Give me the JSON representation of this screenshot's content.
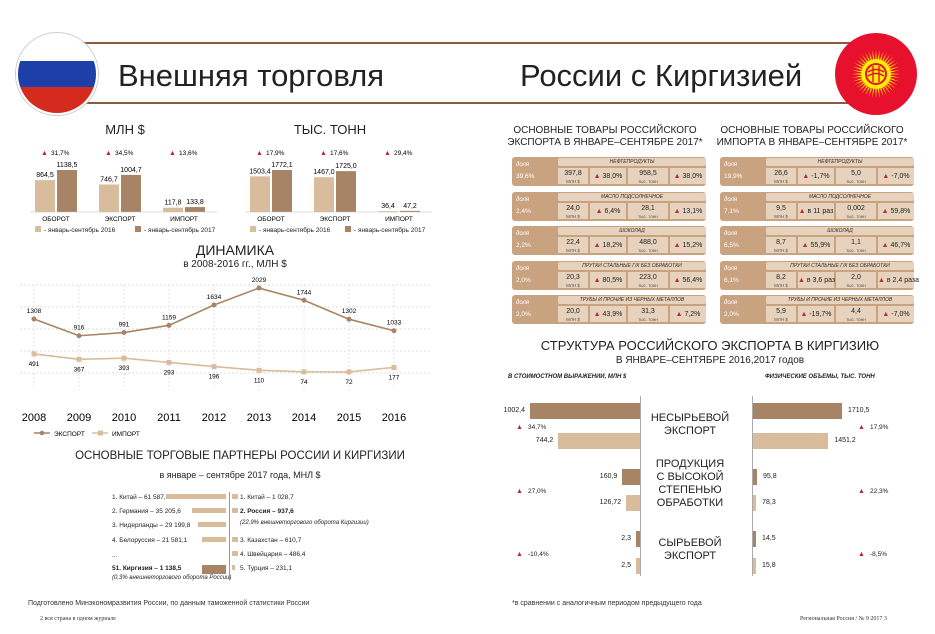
{
  "header": {
    "title_left": "Внешняя торговля",
    "title_right": "России с Киргизией"
  },
  "top_charts": {
    "legend": [
      "- январь-сентябрь 2016",
      "- январь-сентябрь 2017"
    ],
    "mln": {
      "title": "МЛН $",
      "categories": [
        "ОБОРОТ",
        "ЭКСПОРТ",
        "ИМПОРТ"
      ],
      "v2016": [
        864.5,
        746.7,
        117.8
      ],
      "v2017": [
        1138.5,
        1004.7,
        133.8
      ],
      "labels2016": [
        "864,5",
        "746,7",
        "117,8"
      ],
      "labels2017": [
        "1138,5",
        "1004,7",
        "133,8"
      ],
      "growth": [
        "31,7%",
        "34,5%",
        "13,6%"
      ]
    },
    "tonn": {
      "title": "ТЫС. ТОНН",
      "categories": [
        "ОБОРОТ",
        "ЭКСПОРТ",
        "ИМПОРТ"
      ],
      "v2016": [
        1503.4,
        1467.0,
        36.4
      ],
      "v2017": [
        1772.1,
        1725.0,
        47.2
      ],
      "labels2016": [
        "1503,4",
        "1467,0",
        "36,4"
      ],
      "labels2017": [
        "1772,1",
        "1725,0",
        "47,2"
      ],
      "growth": [
        "17,9%",
        "17,6%",
        "29,4%"
      ]
    }
  },
  "dynamics": {
    "title": "ДИНАМИКА",
    "subtitle": "в 2008-2016 гг., МЛН $",
    "years": [
      "2008",
      "2009",
      "2010",
      "2011",
      "2012",
      "2013",
      "2014",
      "2015",
      "2016"
    ],
    "export": [
      1308,
      916,
      991,
      1159,
      1634,
      2029,
      1744,
      1302,
      1033
    ],
    "import": [
      491,
      367,
      393,
      293,
      196,
      110,
      74,
      72,
      177
    ],
    "legend": [
      "ЭКСПОРТ",
      "ИМПОРТ"
    ]
  },
  "partners": {
    "title": "ОСНОВНЫЕ ТОРГОВЫЕ ПАРТНЕРЫ РОССИИ И КИРГИЗИИ",
    "subtitle": "в январе – сентябре 2017 года, МНЛ $",
    "left": [
      {
        "label": "1. Китай – 61 587,0",
        "v": 61587.0
      },
      {
        "label": "2. Германия – 35 205,6",
        "v": 35205.6
      },
      {
        "label": "3. Нидерланды – 29 199,8",
        "v": 29199.8
      },
      {
        "label": "4. Белоруссия – 21 581,1",
        "v": 21581.1
      },
      {
        "label": "...",
        "v": 0
      },
      {
        "label": "51. Киргизия – 1 138,5",
        "v": 1138.5,
        "bold": true
      }
    ],
    "left_note": "(0,3% внешнеторгового оборота России)",
    "right": [
      {
        "label": "1. Китай – 1 028,7",
        "v": 1028.7
      },
      {
        "label": "2. Россия – 937,6",
        "v": 937.6,
        "bold": true
      },
      {
        "label": "3. Казахстан – 610,7",
        "v": 610.7
      },
      {
        "label": "4. Швейцария – 486,4",
        "v": 486.4
      },
      {
        "label": "5. Турция – 231,1",
        "v": 231.1
      }
    ],
    "right_note": "(22,9% внешнеторгового оборота Киргизии)"
  },
  "goods": {
    "export_title": [
      "ОСНОВНЫЕ ТОВАРЫ РОССИЙСКОГО",
      "ЭКСПОРТА В ЯНВАРЕ–СЕНТЯБРЕ 2017*"
    ],
    "import_title": [
      "ОСНОВНЫЕ ТОВАРЫ РОССИЙСКОГО",
      "ИМПОРТА В ЯНВАРЕ–СЕНТЯБРЕ 2017*"
    ],
    "share_word": "доля",
    "unit_money": "МЛН $",
    "unit_mass": "тыс. тонн",
    "export": [
      {
        "name": "НЕФТЕПРОДУКТЫ",
        "share": "39,6%",
        "money": "397,8",
        "mg": "38,0%",
        "mass": "958,5",
        "tg": "38,0%"
      },
      {
        "name": "МАСЛО ПОДСОЛНЕЧНОЕ",
        "share": "2,4%",
        "money": "24,0",
        "mg": "6,4%",
        "mass": "28,1",
        "tg": "13,1%"
      },
      {
        "name": "ШОКОЛАД",
        "share": "2,2%",
        "money": "22,4",
        "mg": "18,2%",
        "mass": "488,0",
        "tg": "15,2%"
      },
      {
        "name": "ПРУТКИ СТАЛЬНЫЕ Г/К БЕЗ ОБРАБОТКИ",
        "share": "2,0%",
        "money": "20,3",
        "mg": "80,5%",
        "mass": "223,0",
        "tg": "56,4%"
      },
      {
        "name": "ТРУБЫ И ПРОЧИЕ ИЗ ЧЕРНЫХ МЕТАЛЛОВ",
        "share": "2,0%",
        "money": "20,0",
        "mg": "43,9%",
        "mass": "31,3",
        "tg": "7,2%"
      }
    ],
    "import": [
      {
        "name": "НЕФТЕПРОДУКТЫ",
        "share": "19,9%",
        "money": "26,6",
        "mg": "-1,7%",
        "mass": "5,0",
        "tg": "-7,0%"
      },
      {
        "name": "МАСЛО ПОДСОЛНЕЧНОЕ",
        "share": "7,1%",
        "money": "9,5",
        "mg": "в 11 раз",
        "mass": "0,002",
        "tg": "59,8%"
      },
      {
        "name": "ШОКОЛАД",
        "share": "6,5%",
        "money": "8,7",
        "mg": "55,9%",
        "mass": "1,1",
        "tg": "46,7%"
      },
      {
        "name": "ПРУТКИ СТАЛЬНЫЕ Г/К БЕЗ ОБРАБОТКИ",
        "share": "6,1%",
        "money": "8,2",
        "mg": "в 3,6 раз",
        "mass": "2,0",
        "tg": "в 2,4 раза"
      },
      {
        "name": "ТРУБЫ И ПРОЧИЕ ИЗ ЧЕРНЫХ МЕТАЛЛОВ",
        "share": "2,0%",
        "money": "5,9",
        "mg": "-19,7%",
        "mass": "4,4",
        "tg": "-7,0%"
      }
    ]
  },
  "structure": {
    "title": "СТРУКТУРА РОССИЙСКОГО ЭКСПОРТА В КИРГИЗИЮ",
    "subtitle": "В ЯНВАРЕ–СЕНТЯБРЕ 2016,2017 годов",
    "left_caption": "В СТОИМОСТНОМ ВЫРАЖЕНИИ, МЛН $",
    "right_caption": "ФИЗИЧЕСКИЕ ОБЪЕМЫ, ТЫС. ТОНН",
    "groups": [
      {
        "name": [
          "НЕСЫРЬЕВОЙ",
          "ЭКСПОРТ"
        ],
        "m2017": 1002.4,
        "m2016": 744.2,
        "ml17": "1002,4",
        "ml16": "744,2",
        "mg": "34,7%",
        "t2017": 1710.5,
        "t2016": 1451.2,
        "tl17": "1710,5",
        "tl16": "1451,2",
        "tg": "17,9%"
      },
      {
        "name": [
          "ПРОДУКЦИЯ",
          "С ВЫСОКОЙ",
          "СТЕПЕНЬЮ",
          "ОБРАБОТКИ"
        ],
        "m2017": 160.9,
        "m2016": 126.72,
        "ml17": "160,9",
        "ml16": "126,72",
        "mg": "27,0%",
        "t2017": 95.8,
        "t2016": 78.3,
        "tl17": "95,8",
        "tl16": "78,3",
        "tg": "22,3%"
      },
      {
        "name": [
          "СЫРЬЕВОЙ",
          "ЭКСПОРТ"
        ],
        "m2017": 2.3,
        "m2016": 2.5,
        "ml17": "2,3",
        "ml16": "2,5",
        "mg": "-10,4%",
        "t2017": 14.5,
        "t2016": 15.8,
        "tl17": "14,5",
        "tl16": "15,8",
        "tg": "-8,5%"
      }
    ]
  },
  "footer": {
    "source": "Подготовлено Минэкономразвития России, по данным таможенной статистики России",
    "note": "*в сравнении с аналогичным периодом предыдущего года",
    "page_left": "2    вся страна в одном журнале",
    "page_right": "Региональная Россия / № 9 2017    3"
  },
  "colors": {
    "dark": "#a88466",
    "light": "#d9bc9c",
    "accent": "#c0292a",
    "border": "#8a5b3e"
  },
  "chart_data": [
    {
      "type": "bar",
      "title": "МЛН $",
      "categories": [
        "ОБОРОТ",
        "ЭКСПОРТ",
        "ИМПОРТ"
      ],
      "series": [
        {
          "name": "- январь-сентябрь 2016",
          "values": [
            864.5,
            746.7,
            117.8
          ]
        },
        {
          "name": "- январь-сентябрь 2017",
          "values": [
            1138.5,
            1004.7,
            133.8
          ]
        }
      ]
    },
    {
      "type": "bar",
      "title": "ТЫС. ТОНН",
      "categories": [
        "ОБОРОТ",
        "ЭКСПОРТ",
        "ИМПОРТ"
      ],
      "series": [
        {
          "name": "- январь-сентябрь 2016",
          "values": [
            1503.4,
            1467.0,
            36.4
          ]
        },
        {
          "name": "- январь-сентябрь 2017",
          "values": [
            1772.1,
            1725.0,
            47.2
          ]
        }
      ]
    },
    {
      "type": "line",
      "title": "ДИНАМИКА",
      "subtitle": "в 2008-2016 гг., МЛН $",
      "x": [
        "2008",
        "2009",
        "2010",
        "2011",
        "2012",
        "2013",
        "2014",
        "2015",
        "2016"
      ],
      "series": [
        {
          "name": "ЭКСПОРТ",
          "values": [
            1308,
            916,
            991,
            1159,
            1634,
            2029,
            1744,
            1302,
            1033
          ]
        },
        {
          "name": "ИМПОРТ",
          "values": [
            491,
            367,
            393,
            293,
            196,
            110,
            74,
            72,
            177
          ]
        }
      ]
    }
  ]
}
